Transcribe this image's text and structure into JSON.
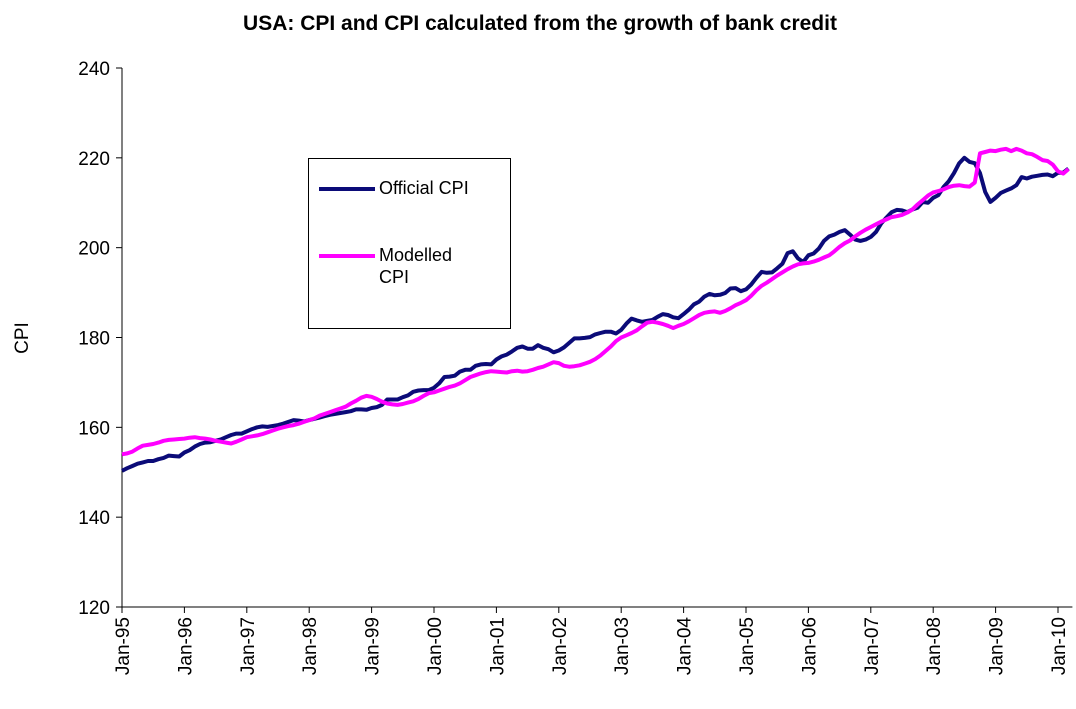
{
  "chart_data": {
    "type": "line",
    "title": "USA: CPI and CPI calculated from the growth of bank credit",
    "y_label": "CPI",
    "categories": [
      "Jan-95",
      null,
      null,
      null,
      null,
      null,
      null,
      null,
      null,
      null,
      null,
      null,
      "Jan-96",
      null,
      null,
      null,
      null,
      null,
      null,
      null,
      null,
      null,
      null,
      null,
      "Jan-97",
      null,
      null,
      null,
      null,
      null,
      null,
      null,
      null,
      null,
      null,
      null,
      "Jan-98",
      null,
      null,
      null,
      null,
      null,
      null,
      null,
      null,
      null,
      null,
      null,
      "Jan-99",
      null,
      null,
      null,
      null,
      null,
      null,
      null,
      null,
      null,
      null,
      null,
      "Jan-00",
      null,
      null,
      null,
      null,
      null,
      null,
      null,
      null,
      null,
      null,
      null,
      "Jan-01",
      null,
      null,
      null,
      null,
      null,
      null,
      null,
      null,
      null,
      null,
      null,
      "Jan-02",
      null,
      null,
      null,
      null,
      null,
      null,
      null,
      null,
      null,
      null,
      null,
      "Jan-03",
      null,
      null,
      null,
      null,
      null,
      null,
      null,
      null,
      null,
      null,
      null,
      "Jan-04",
      null,
      null,
      null,
      null,
      null,
      null,
      null,
      null,
      null,
      null,
      null,
      "Jan-05",
      null,
      null,
      null,
      null,
      null,
      null,
      null,
      null,
      null,
      null,
      null,
      "Jan-06",
      null,
      null,
      null,
      null,
      null,
      null,
      null,
      null,
      null,
      null,
      null,
      "Jan-07",
      null,
      null,
      null,
      null,
      null,
      null,
      null,
      null,
      null,
      null,
      null,
      "Jan-08",
      null,
      null,
      null,
      null,
      null,
      null,
      null,
      null,
      null,
      null,
      null,
      "Jan-09",
      null,
      null,
      null,
      null,
      null,
      null,
      null,
      null,
      null,
      null,
      null,
      "Jan-10",
      null,
      null
    ],
    "series": [
      {
        "name": "Official CPI",
        "color": "#0b0b78",
        "values": [
          150.3,
          150.9,
          151.4,
          151.9,
          152.2,
          152.5,
          152.5,
          152.9,
          153.2,
          153.7,
          153.6,
          153.5,
          154.4,
          154.9,
          155.7,
          156.3,
          156.6,
          156.7,
          157.0,
          157.3,
          157.8,
          158.3,
          158.6,
          158.6,
          159.1,
          159.6,
          160.0,
          160.2,
          160.1,
          160.3,
          160.5,
          160.8,
          161.2,
          161.6,
          161.5,
          161.3,
          161.6,
          161.9,
          162.2,
          162.5,
          162.8,
          163.0,
          163.2,
          163.4,
          163.6,
          164.0,
          164.0,
          163.9,
          164.3,
          164.5,
          165.0,
          166.2,
          166.2,
          166.2,
          166.7,
          167.1,
          167.9,
          168.2,
          168.3,
          168.3,
          168.8,
          169.8,
          171.2,
          171.3,
          171.5,
          172.4,
          172.8,
          172.8,
          173.7,
          174.0,
          174.1,
          174.0,
          175.1,
          175.8,
          176.2,
          176.9,
          177.7,
          178.0,
          177.5,
          177.5,
          178.3,
          177.7,
          177.4,
          176.7,
          177.1,
          177.8,
          178.8,
          179.8,
          179.8,
          179.9,
          180.1,
          180.7,
          181.0,
          181.3,
          181.3,
          180.9,
          181.7,
          183.1,
          184.2,
          183.8,
          183.5,
          183.7,
          183.9,
          184.6,
          185.2,
          185.0,
          184.5,
          184.3,
          185.2,
          186.2,
          187.4,
          188.0,
          189.1,
          189.7,
          189.4,
          189.5,
          189.9,
          190.9,
          191.0,
          190.3,
          190.7,
          191.8,
          193.3,
          194.6,
          194.4,
          194.5,
          195.4,
          196.4,
          198.8,
          199.2,
          197.6,
          196.8,
          198.3,
          198.7,
          199.8,
          201.5,
          202.5,
          202.9,
          203.5,
          203.9,
          202.9,
          201.8,
          201.5,
          201.8,
          202.4,
          203.5,
          205.4,
          206.7,
          207.9,
          208.4,
          208.3,
          207.9,
          208.5,
          208.9,
          210.2,
          210.0,
          211.1,
          211.7,
          213.5,
          214.8,
          216.6,
          218.8,
          220.0,
          219.1,
          218.8,
          216.6,
          212.4,
          210.2,
          211.1,
          212.2,
          212.7,
          213.2,
          213.9,
          215.7,
          215.4,
          215.8,
          216.0,
          216.2,
          216.3,
          215.9,
          216.7,
          216.7,
          217.6
        ]
      },
      {
        "name": "Modelled CPI",
        "color": "#ff00ff",
        "values": [
          154.0,
          154.2,
          154.6,
          155.3,
          155.9,
          156.1,
          156.3,
          156.6,
          157.0,
          157.2,
          157.3,
          157.4,
          157.5,
          157.7,
          157.8,
          157.6,
          157.5,
          157.3,
          157.0,
          156.8,
          156.6,
          156.4,
          156.8,
          157.3,
          157.8,
          158.0,
          158.2,
          158.5,
          158.9,
          159.3,
          159.7,
          160.0,
          160.3,
          160.5,
          160.8,
          161.2,
          161.6,
          162.0,
          162.6,
          163.0,
          163.4,
          163.8,
          164.2,
          164.6,
          165.3,
          165.9,
          166.6,
          167.0,
          166.8,
          166.3,
          165.7,
          165.3,
          165.1,
          165.0,
          165.2,
          165.5,
          165.8,
          166.3,
          167.0,
          167.6,
          167.8,
          168.2,
          168.6,
          169.0,
          169.3,
          169.8,
          170.5,
          171.2,
          171.6,
          172.0,
          172.3,
          172.5,
          172.4,
          172.3,
          172.2,
          172.5,
          172.6,
          172.4,
          172.5,
          172.8,
          173.2,
          173.5,
          174.0,
          174.5,
          174.3,
          173.7,
          173.5,
          173.6,
          173.8,
          174.2,
          174.6,
          175.2,
          176.0,
          177.0,
          178.0,
          179.2,
          180.0,
          180.5,
          181.0,
          181.6,
          182.5,
          183.3,
          183.5,
          183.3,
          183.0,
          182.6,
          182.1,
          182.6,
          183.0,
          183.6,
          184.3,
          185.0,
          185.5,
          185.7,
          185.8,
          185.5,
          185.9,
          186.5,
          187.2,
          187.7,
          188.3,
          189.3,
          190.5,
          191.5,
          192.2,
          193.0,
          193.8,
          194.5,
          195.2,
          195.8,
          196.3,
          196.5,
          196.6,
          196.9,
          197.3,
          197.8,
          198.3,
          199.2,
          200.2,
          201.0,
          201.6,
          202.5,
          203.3,
          204.0,
          204.6,
          205.2,
          205.8,
          206.3,
          206.8,
          207.0,
          207.3,
          207.8,
          208.5,
          209.6,
          210.6,
          211.6,
          212.3,
          212.6,
          213.0,
          213.5,
          213.8,
          213.9,
          213.7,
          213.6,
          214.5,
          221.0,
          221.3,
          221.6,
          221.5,
          221.8,
          222.0,
          221.5,
          222.0,
          221.6,
          221.0,
          220.8,
          220.2,
          219.5,
          219.3,
          218.5,
          217.0,
          216.5,
          217.5
        ]
      }
    ],
    "ylim": [
      120,
      240
    ],
    "yticks": [
      120,
      140,
      160,
      180,
      200,
      220,
      240
    ],
    "grid": false,
    "legend": "upper left"
  }
}
